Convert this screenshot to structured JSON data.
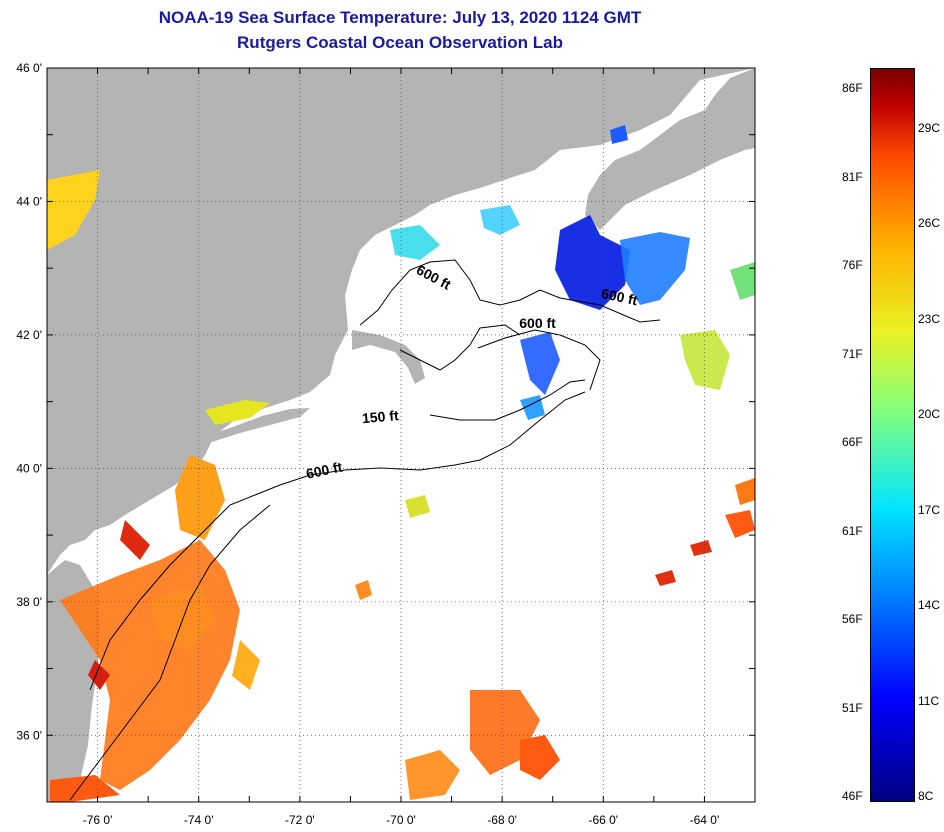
{
  "title": {
    "line1": "NOAA-19 Sea Surface Temperature:  July 13, 2020 1124 GMT",
    "line2": "Rutgers Coastal Ocean Observation Lab"
  },
  "colors": {
    "land": "#b4b4b4",
    "ocean": "#ffffff",
    "title": "#1a1aa0",
    "grid": "#444444"
  },
  "map": {
    "lon_range": [
      -77,
      -63
    ],
    "lat_range": [
      35,
      46
    ],
    "lon_ticks": [
      {
        "value": -76,
        "label": "-76 0'"
      },
      {
        "value": -74,
        "label": "-74 0'"
      },
      {
        "value": -72,
        "label": "-72 0'"
      },
      {
        "value": -70,
        "label": "-70 0'"
      },
      {
        "value": -68,
        "label": "-68 0'"
      },
      {
        "value": -66,
        "label": "-66 0'"
      },
      {
        "value": -64,
        "label": "-64 0'"
      }
    ],
    "lat_ticks": [
      {
        "value": 46,
        "label": "46 0'"
      },
      {
        "value": 44,
        "label": "44 0'"
      },
      {
        "value": 42,
        "label": "42 0'"
      },
      {
        "value": 40,
        "label": "40 0'"
      },
      {
        "value": 38,
        "label": "38 0'"
      },
      {
        "value": 36,
        "label": "36 0'"
      }
    ],
    "contour_labels": [
      {
        "text": "600 ft",
        "lon": -69.4,
        "lat": 42.8,
        "rotate": 28
      },
      {
        "text": "600 ft",
        "lon": -65.7,
        "lat": 42.5,
        "rotate": 12
      },
      {
        "text": "600 ft",
        "lon": -67.3,
        "lat": 42.1,
        "rotate": 0
      },
      {
        "text": "150 ft",
        "lon": -70.4,
        "lat": 40.7,
        "rotate": -5
      },
      {
        "text": "600 ft",
        "lon": -71.5,
        "lat": 39.9,
        "rotate": -12
      }
    ]
  },
  "colorbar": {
    "f_labels": [
      "86F",
      "81F",
      "76F",
      "71F",
      "66F",
      "61F",
      "56F",
      "51F",
      "46F"
    ],
    "c_labels": [
      "29C",
      "26C",
      "23C",
      "20C",
      "17C",
      "14C",
      "11C",
      "8C"
    ]
  }
}
